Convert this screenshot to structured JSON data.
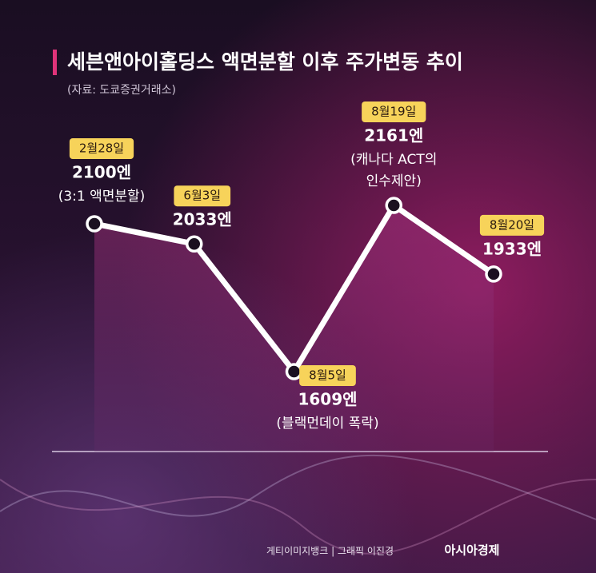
{
  "title": "세븐앤아이홀딩스 액면분할 이후 주가변동 추이",
  "source": "(자료: 도쿄증권거래소)",
  "footer": {
    "credit": "게티이미지뱅크 | 그래픽 이진경",
    "brand": "아시아경제"
  },
  "chart_data": {
    "type": "line",
    "categories": [
      "2월28일",
      "6월3일",
      "8월5일",
      "8월19일",
      "8월20일"
    ],
    "values": [
      2100,
      2033,
      1609,
      2161,
      1933
    ],
    "value_labels": [
      "2100엔",
      "2033엔",
      "1609엔",
      "2161엔",
      "1933엔"
    ],
    "annotations": [
      [
        "(3:1 액면분할)"
      ],
      null,
      [
        "(블랙먼데이 폭락)"
      ],
      [
        "(캐나다 ACT의",
        "인수제안)"
      ],
      null
    ],
    "color": "#ffffff"
  }
}
